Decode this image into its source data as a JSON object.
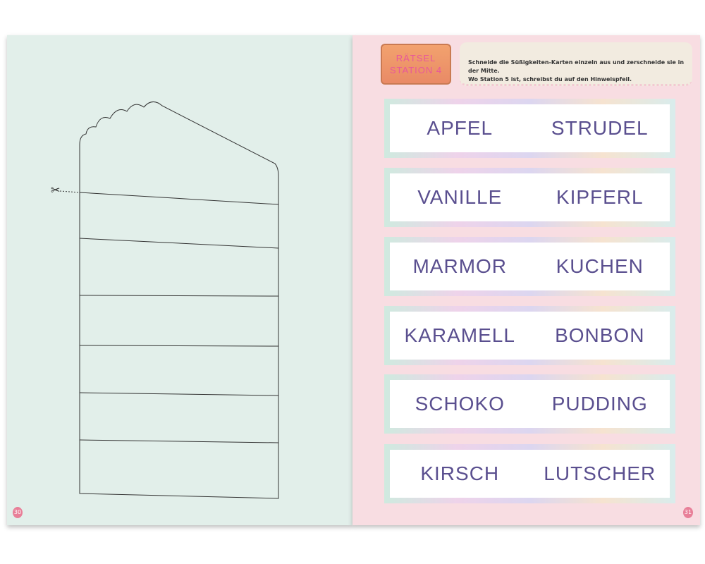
{
  "left_page": {
    "page_number": "30",
    "cut_icon": "scissors-icon"
  },
  "right_page": {
    "page_number": "31",
    "banner": {
      "line1": "RÄTSEL",
      "line2": "STATION 4"
    },
    "instructions": {
      "line1": "Schneide die Süßigkeiten-Karten einzeln aus und zerschneide sie in der Mitte.",
      "line2": "Wo Station 5 ist, schreibst du auf den Hinweispfeil."
    },
    "cards": [
      {
        "left": "APFEL",
        "right": "STRUDEL"
      },
      {
        "left": "VANILLE",
        "right": "KIPFERL"
      },
      {
        "left": "MARMOR",
        "right": "KUCHEN"
      },
      {
        "left": "KARAMELL",
        "right": "BONBON"
      },
      {
        "left": "SCHOKO",
        "right": "PUDDING"
      },
      {
        "left": "KIRSCH",
        "right": "LUTSCHER"
      }
    ]
  }
}
